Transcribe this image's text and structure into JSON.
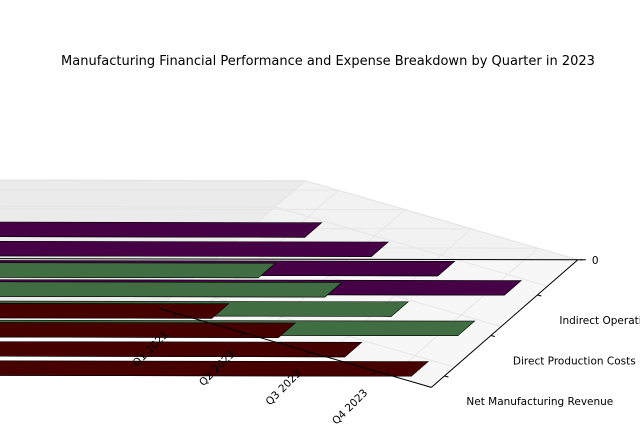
{
  "chart_data": {
    "type": "bar3d",
    "title": "Manufacturing Financial Performance and Expense Breakdown by Quarter in 2023",
    "categories": [
      "Q1 2023",
      "Q2 2023",
      "Q3 2023",
      "Q4 2023"
    ],
    "series": [
      {
        "name": "Net Manufacturing Revenue",
        "color": "#800000",
        "values": [
          29000,
          31000,
          32000,
          32000
        ]
      },
      {
        "name": "Direct Production Costs",
        "color": "#77c77a",
        "values": [
          12000,
          12500,
          12000,
          12000
        ]
      },
      {
        "name": "Indirect Operational Costs",
        "color": "#800080",
        "values": [
          5500,
          5000,
          4000,
          3000
        ]
      }
    ],
    "zticks": [
      "0",
      "5000",
      "10000",
      "15000",
      "20000",
      "25000",
      "30000",
      "35000"
    ],
    "zlim": [
      0,
      35000
    ],
    "grid": true
  }
}
